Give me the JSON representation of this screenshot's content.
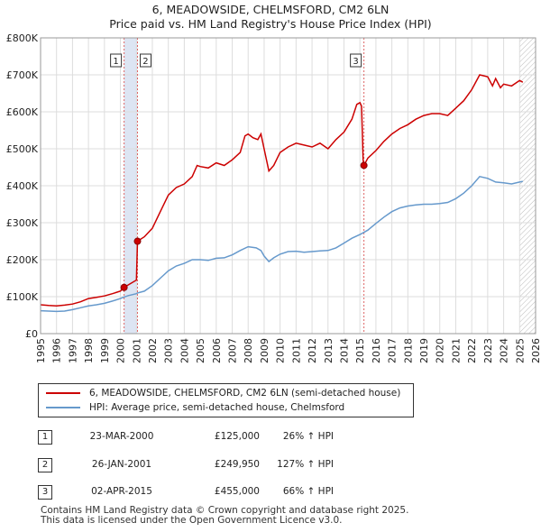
{
  "title_line1": "6, MEADOWSIDE, CHELMSFORD, CM2 6LN",
  "title_line2": "Price paid vs. HM Land Registry's House Price Index (HPI)",
  "legend": {
    "red_label": "6, MEADOWSIDE, CHELMSFORD, CM2 6LN (semi-detached house)",
    "blue_label": "HPI: Average price, semi-detached house, Chelmsford"
  },
  "colors": {
    "red": "#cc0000",
    "blue": "#6699cc",
    "band": "#dde5f3",
    "hatch": "#bbbbbb",
    "grid": "#dddddd"
  },
  "transactions": [
    {
      "num": "1",
      "date": "23-MAR-2000",
      "price": "£125,000",
      "hpi": "26% ↑ HPI"
    },
    {
      "num": "2",
      "date": "26-JAN-2001",
      "price": "£249,950",
      "hpi": "127% ↑ HPI"
    },
    {
      "num": "3",
      "date": "02-APR-2015",
      "price": "£455,000",
      "hpi": "66% ↑ HPI"
    }
  ],
  "footer_line1": "Contains HM Land Registry data © Crown copyright and database right 2025.",
  "footer_line2": "This data is licensed under the Open Government Licence v3.0.",
  "chart_data": {
    "type": "line",
    "title": "6, MEADOWSIDE, CHELMSFORD, CM2 6LN",
    "subtitle": "Price paid vs. HM Land Registry's House Price Index (HPI)",
    "xlabel": "",
    "ylabel": "",
    "xlim": [
      1995,
      2026
    ],
    "ylim": [
      0,
      800000
    ],
    "x_ticks": [
      "1995",
      "1996",
      "1997",
      "1998",
      "1999",
      "2000",
      "2001",
      "2002",
      "2003",
      "2004",
      "2005",
      "2006",
      "2007",
      "2008",
      "2009",
      "2010",
      "2011",
      "2012",
      "2013",
      "2014",
      "2015",
      "2016",
      "2017",
      "2018",
      "2019",
      "2020",
      "2021",
      "2022",
      "2023",
      "2024",
      "2025",
      "2026"
    ],
    "y_ticks": [
      {
        "value": 0,
        "label": "£0"
      },
      {
        "value": 100000,
        "label": "£100K"
      },
      {
        "value": 200000,
        "label": "£200K"
      },
      {
        "value": 300000,
        "label": "£300K"
      },
      {
        "value": 400000,
        "label": "£400K"
      },
      {
        "value": 500000,
        "label": "£500K"
      },
      {
        "value": 600000,
        "label": "£600K"
      },
      {
        "value": 700000,
        "label": "£700K"
      },
      {
        "value": 800000,
        "label": "£800K"
      }
    ],
    "grid": true,
    "shaded_band": [
      2000.23,
      2001.07
    ],
    "future_hatch_from": 2025.0,
    "series": [
      {
        "name": "6, MEADOWSIDE, CHELMSFORD, CM2 6LN (semi-detached house)",
        "color": "#cc0000",
        "points": [
          [
            1995.0,
            78000
          ],
          [
            1995.5,
            76000
          ],
          [
            1996.0,
            75000
          ],
          [
            1996.5,
            77000
          ],
          [
            1997.0,
            80000
          ],
          [
            1997.5,
            86000
          ],
          [
            1998.0,
            95000
          ],
          [
            1998.5,
            98000
          ],
          [
            1999.0,
            102000
          ],
          [
            1999.5,
            108000
          ],
          [
            2000.0,
            115000
          ],
          [
            2000.23,
            125000
          ],
          [
            2000.5,
            132000
          ],
          [
            2001.0,
            145000
          ],
          [
            2001.07,
            249950
          ],
          [
            2001.5,
            262000
          ],
          [
            2002.0,
            285000
          ],
          [
            2002.5,
            330000
          ],
          [
            2003.0,
            375000
          ],
          [
            2003.5,
            395000
          ],
          [
            2004.0,
            405000
          ],
          [
            2004.5,
            425000
          ],
          [
            2004.8,
            455000
          ],
          [
            2005.0,
            452000
          ],
          [
            2005.5,
            448000
          ],
          [
            2006.0,
            462000
          ],
          [
            2006.5,
            455000
          ],
          [
            2007.0,
            470000
          ],
          [
            2007.5,
            490000
          ],
          [
            2007.8,
            535000
          ],
          [
            2008.0,
            540000
          ],
          [
            2008.3,
            530000
          ],
          [
            2008.6,
            525000
          ],
          [
            2008.8,
            540000
          ],
          [
            2009.0,
            500000
          ],
          [
            2009.3,
            440000
          ],
          [
            2009.6,
            455000
          ],
          [
            2010.0,
            490000
          ],
          [
            2010.5,
            505000
          ],
          [
            2011.0,
            515000
          ],
          [
            2011.5,
            510000
          ],
          [
            2012.0,
            505000
          ],
          [
            2012.5,
            515000
          ],
          [
            2013.0,
            500000
          ],
          [
            2013.5,
            525000
          ],
          [
            2014.0,
            545000
          ],
          [
            2014.5,
            580000
          ],
          [
            2014.8,
            620000
          ],
          [
            2015.0,
            625000
          ],
          [
            2015.1,
            615000
          ],
          [
            2015.2,
            470000
          ],
          [
            2015.25,
            455000
          ],
          [
            2015.5,
            475000
          ],
          [
            2016.0,
            495000
          ],
          [
            2016.5,
            520000
          ],
          [
            2017.0,
            540000
          ],
          [
            2017.5,
            555000
          ],
          [
            2018.0,
            565000
          ],
          [
            2018.5,
            580000
          ],
          [
            2019.0,
            590000
          ],
          [
            2019.5,
            595000
          ],
          [
            2020.0,
            595000
          ],
          [
            2020.5,
            590000
          ],
          [
            2021.0,
            610000
          ],
          [
            2021.5,
            630000
          ],
          [
            2022.0,
            660000
          ],
          [
            2022.5,
            700000
          ],
          [
            2023.0,
            695000
          ],
          [
            2023.3,
            670000
          ],
          [
            2023.5,
            690000
          ],
          [
            2023.8,
            665000
          ],
          [
            2024.0,
            675000
          ],
          [
            2024.5,
            670000
          ],
          [
            2025.0,
            685000
          ],
          [
            2025.2,
            680000
          ]
        ]
      },
      {
        "name": "HPI: Average price, semi-detached house, Chelmsford",
        "color": "#6699cc",
        "points": [
          [
            1995.0,
            62000
          ],
          [
            1995.5,
            61000
          ],
          [
            1996.0,
            60000
          ],
          [
            1996.5,
            61000
          ],
          [
            1997.0,
            65000
          ],
          [
            1997.5,
            70000
          ],
          [
            1998.0,
            75000
          ],
          [
            1998.5,
            78000
          ],
          [
            1999.0,
            82000
          ],
          [
            1999.5,
            88000
          ],
          [
            2000.0,
            95000
          ],
          [
            2000.23,
            99000
          ],
          [
            2000.5,
            103000
          ],
          [
            2001.0,
            108000
          ],
          [
            2001.07,
            110000
          ],
          [
            2001.5,
            115000
          ],
          [
            2002.0,
            130000
          ],
          [
            2002.5,
            150000
          ],
          [
            2003.0,
            170000
          ],
          [
            2003.5,
            183000
          ],
          [
            2004.0,
            190000
          ],
          [
            2004.5,
            200000
          ],
          [
            2005.0,
            200000
          ],
          [
            2005.5,
            198000
          ],
          [
            2006.0,
            204000
          ],
          [
            2006.5,
            205000
          ],
          [
            2007.0,
            213000
          ],
          [
            2007.5,
            225000
          ],
          [
            2008.0,
            235000
          ],
          [
            2008.5,
            232000
          ],
          [
            2008.8,
            225000
          ],
          [
            2009.0,
            210000
          ],
          [
            2009.3,
            195000
          ],
          [
            2009.6,
            205000
          ],
          [
            2010.0,
            215000
          ],
          [
            2010.5,
            222000
          ],
          [
            2011.0,
            223000
          ],
          [
            2011.5,
            220000
          ],
          [
            2012.0,
            222000
          ],
          [
            2012.5,
            224000
          ],
          [
            2013.0,
            225000
          ],
          [
            2013.5,
            232000
          ],
          [
            2014.0,
            245000
          ],
          [
            2014.5,
            258000
          ],
          [
            2015.0,
            268000
          ],
          [
            2015.25,
            274000
          ],
          [
            2015.5,
            280000
          ],
          [
            2016.0,
            298000
          ],
          [
            2016.5,
            315000
          ],
          [
            2017.0,
            330000
          ],
          [
            2017.5,
            340000
          ],
          [
            2018.0,
            345000
          ],
          [
            2018.5,
            348000
          ],
          [
            2019.0,
            350000
          ],
          [
            2019.5,
            350000
          ],
          [
            2020.0,
            352000
          ],
          [
            2020.5,
            355000
          ],
          [
            2021.0,
            365000
          ],
          [
            2021.5,
            380000
          ],
          [
            2022.0,
            400000
          ],
          [
            2022.5,
            425000
          ],
          [
            2023.0,
            420000
          ],
          [
            2023.5,
            410000
          ],
          [
            2024.0,
            408000
          ],
          [
            2024.5,
            405000
          ],
          [
            2025.0,
            410000
          ],
          [
            2025.2,
            412000
          ]
        ]
      }
    ],
    "markers": [
      {
        "label": "1",
        "x": 2000.23,
        "y": 125000
      },
      {
        "label": "2",
        "x": 2001.07,
        "y": 249950
      },
      {
        "label": "3",
        "x": 2015.25,
        "y": 455000
      }
    ]
  }
}
